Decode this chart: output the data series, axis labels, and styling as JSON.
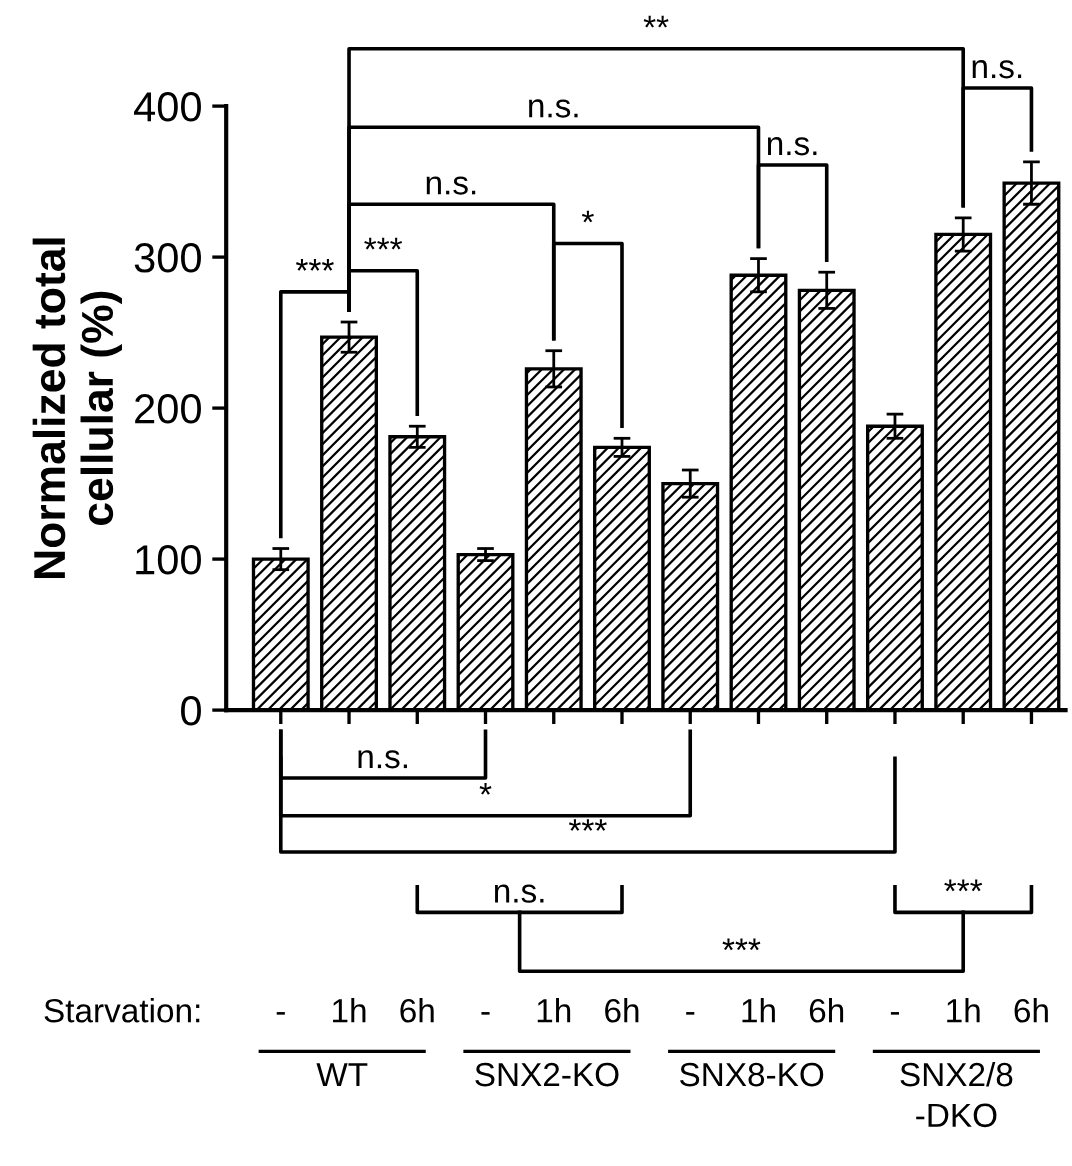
{
  "chart_data": {
    "type": "bar",
    "ylabel": "Normalized total\ncellular (%)",
    "categories": [
      null,
      null,
      null,
      null,
      null,
      null,
      null,
      null,
      null,
      null,
      null,
      null
    ],
    "values": [
      100,
      247,
      181,
      103,
      226,
      174,
      150,
      288,
      278,
      188,
      315,
      349
    ],
    "errors": [
      7,
      10,
      7,
      4,
      12,
      6,
      9,
      11,
      12,
      8,
      11,
      14
    ],
    "color": "#000000",
    "ylim": [
      0,
      400
    ],
    "yticks": [
      0,
      100,
      200,
      300,
      400
    ],
    "grid": false,
    "legend": false,
    "annotations": [
      "***",
      "***",
      "n.s.",
      "*",
      "n.s.",
      "n.s.",
      "**",
      "n.s.",
      "n.s.",
      "*",
      "***",
      "n.s.",
      "***",
      "***",
      "Starvation:",
      "-",
      "1h",
      "6h",
      "-",
      "1h",
      "6h",
      "-",
      "1h",
      "6h",
      "-",
      "1h",
      "6h",
      "WT",
      "SNX2-KO",
      "SNX8-KO",
      "SNX2/8\n-DKO"
    ]
  }
}
